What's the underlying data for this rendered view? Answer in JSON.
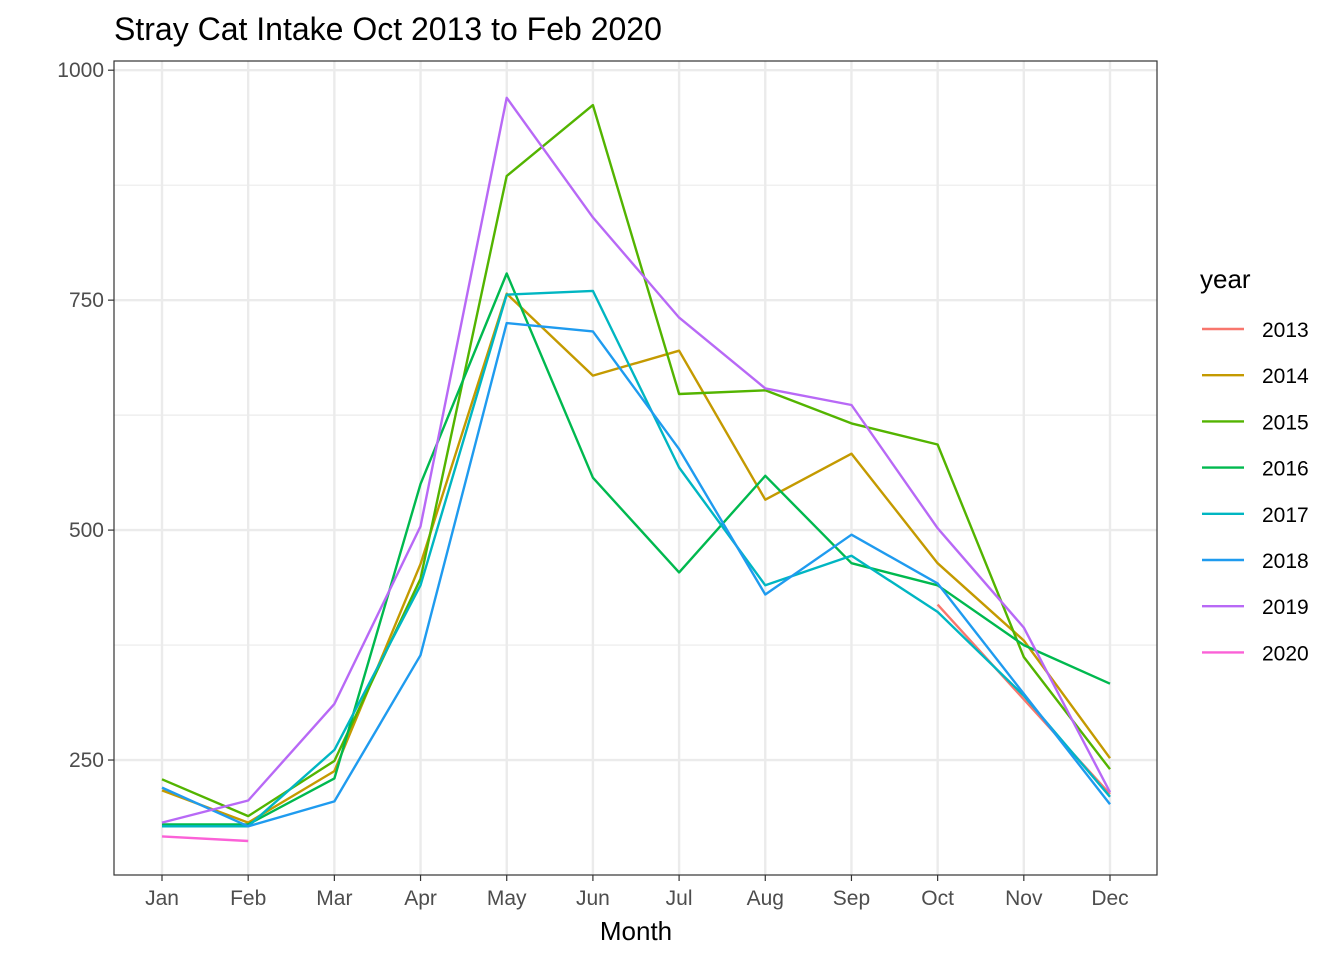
{
  "chart_data": {
    "type": "line",
    "title": "Stray Cat Intake Oct 2013 to Feb 2020",
    "xlabel": "Month",
    "ylabel": "",
    "categories": [
      "Jan",
      "Feb",
      "Mar",
      "Apr",
      "May",
      "Jun",
      "Jul",
      "Aug",
      "Sep",
      "Oct",
      "Nov",
      "Dec"
    ],
    "ylim": [
      125,
      1010
    ],
    "yticks": [
      250,
      500,
      750,
      1000
    ],
    "grid": true,
    "legend_title": "year",
    "legend_position": "right",
    "series": [
      {
        "name": "2013",
        "color": "#F8766D",
        "values": [
          null,
          null,
          null,
          null,
          null,
          null,
          null,
          null,
          null,
          419,
          316,
          213
        ]
      },
      {
        "name": "2014",
        "color": "#C49A00",
        "values": [
          217,
          182,
          238,
          463,
          757,
          668,
          695,
          533,
          583,
          464,
          380,
          252
        ]
      },
      {
        "name": "2015",
        "color": "#53B400",
        "values": [
          229,
          189,
          249,
          447,
          885,
          962,
          648,
          652,
          616,
          593,
          362,
          240
        ]
      },
      {
        "name": "2016",
        "color": "#00B94F",
        "values": [
          180,
          180,
          230,
          550,
          779,
          557,
          454,
          559,
          464,
          440,
          375,
          333
        ]
      },
      {
        "name": "2017",
        "color": "#00B6C2",
        "values": [
          178,
          178,
          261,
          440,
          756,
          760,
          568,
          440,
          472,
          411,
          320,
          210
        ]
      },
      {
        "name": "2018",
        "color": "#1F9BEF",
        "values": [
          220,
          178,
          205,
          364,
          725,
          716,
          588,
          430,
          495,
          442,
          322,
          202
        ]
      },
      {
        "name": "2019",
        "color": "#B869F6",
        "values": [
          182,
          206,
          311,
          504,
          970,
          840,
          731,
          654,
          636,
          502,
          394,
          215
        ]
      },
      {
        "name": "2020",
        "color": "#FB61D7",
        "values": [
          167,
          162,
          null,
          null,
          null,
          null,
          null,
          null,
          null,
          null,
          null,
          null
        ]
      }
    ]
  }
}
